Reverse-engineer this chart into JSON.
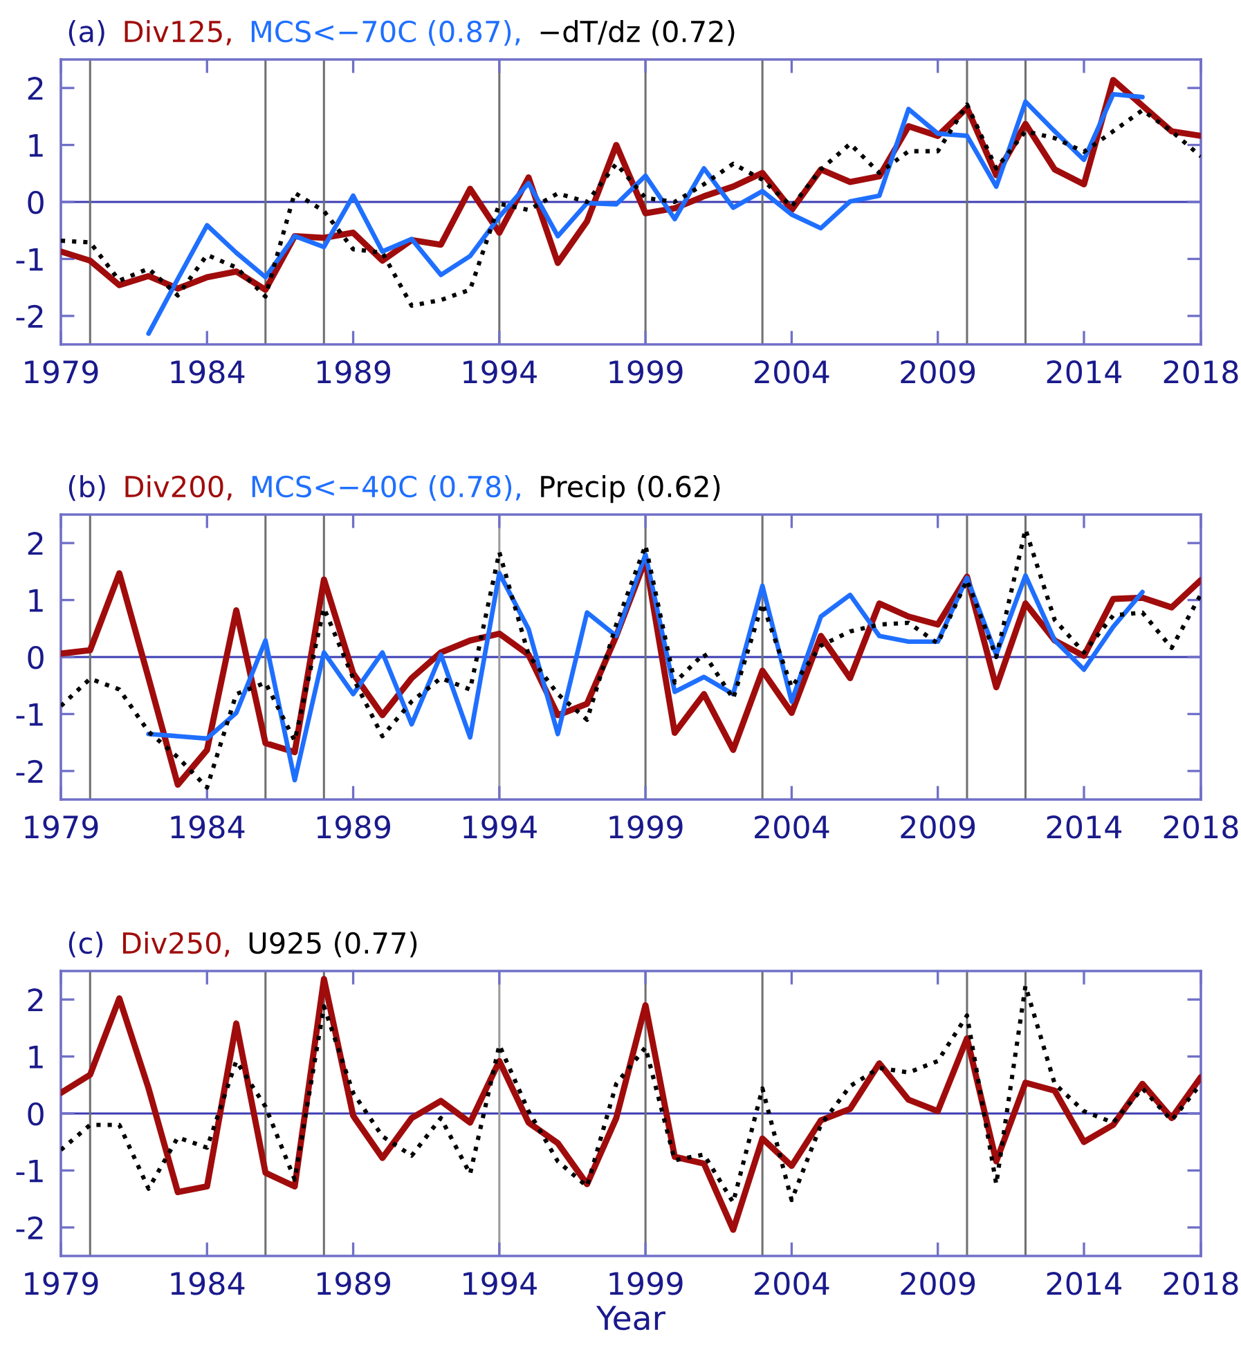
{
  "chart_data": [
    {
      "type": "line",
      "title": "(a)",
      "legend": "top left",
      "xlim": [
        1979,
        2018
      ],
      "ylim": [
        -2.5,
        2.5
      ],
      "xticks": [
        1979,
        1984,
        1989,
        1994,
        1999,
        2004,
        2009,
        2014,
        2018
      ],
      "yticks": [
        -2,
        -1,
        0,
        1,
        2
      ],
      "grid": false,
      "x": [
        1979,
        1980,
        1981,
        1982,
        1983,
        1984,
        1985,
        1986,
        1987,
        1988,
        1989,
        1990,
        1991,
        1992,
        1993,
        1994,
        1995,
        1996,
        1997,
        1998,
        1999,
        2000,
        2001,
        2002,
        2003,
        2004,
        2005,
        2006,
        2007,
        2008,
        2009,
        2010,
        2011,
        2012,
        2013,
        2014,
        2015,
        2016,
        2017,
        2018
      ],
      "ref_lines": [
        {
          "axis": "y",
          "value": 0,
          "color": "#3c3cb4"
        },
        {
          "axis": "x",
          "value": 1980,
          "color": "#707070"
        },
        {
          "axis": "x",
          "value": 1986,
          "color": "#707070"
        },
        {
          "axis": "x",
          "value": 1988,
          "color": "#707070"
        },
        {
          "axis": "x",
          "value": 1994,
          "color": "#707070"
        },
        {
          "axis": "x",
          "value": 1999,
          "color": "#707070"
        },
        {
          "axis": "x",
          "value": 2003,
          "color": "#707070"
        },
        {
          "axis": "x",
          "value": 2010,
          "color": "#707070"
        },
        {
          "axis": "x",
          "value": 2012,
          "color": "#707070"
        }
      ],
      "series": [
        {
          "name": "Div125,",
          "color": "#a00c0c",
          "line_style": "solid",
          "values": [
            -0.87,
            -1.03,
            -1.46,
            -1.3,
            -1.52,
            -1.32,
            -1.22,
            -1.54,
            -0.6,
            -0.63,
            -0.54,
            -1.03,
            -0.67,
            -0.75,
            0.23,
            -0.54,
            0.43,
            -1.07,
            -0.34,
            1.0,
            -0.2,
            -0.11,
            0.1,
            0.27,
            0.51,
            -0.14,
            0.57,
            0.35,
            0.45,
            1.33,
            1.16,
            1.65,
            0.47,
            1.37,
            0.57,
            0.31,
            2.14,
            1.69,
            1.24,
            1.16
          ]
        },
        {
          "name": "MCS<−70C (0.87),",
          "color": "#1f6fff",
          "line_style": "solid",
          "values": [
            null,
            null,
            null,
            -2.31,
            -1.35,
            -0.41,
            -0.89,
            -1.32,
            -0.6,
            -0.79,
            0.11,
            -0.87,
            -0.65,
            -1.28,
            -0.95,
            -0.26,
            0.33,
            -0.6,
            -0.02,
            -0.04,
            0.46,
            -0.3,
            0.59,
            -0.1,
            0.19,
            -0.22,
            -0.46,
            0.01,
            0.11,
            1.63,
            1.2,
            1.16,
            0.27,
            1.76,
            1.24,
            0.74,
            1.89,
            1.84,
            null,
            null
          ]
        },
        {
          "name": "−dT/dz (0.72)",
          "color": "#000000",
          "line_style": "dotted",
          "values": [
            -0.68,
            -0.71,
            -1.38,
            -1.17,
            -1.64,
            -0.93,
            -1.15,
            -1.66,
            0.16,
            -0.16,
            -0.83,
            -0.89,
            -1.82,
            -1.72,
            -1.54,
            -0.03,
            -0.14,
            0.15,
            0.0,
            0.67,
            0.07,
            0.0,
            0.31,
            0.67,
            0.39,
            -0.08,
            0.57,
            1.02,
            0.51,
            0.89,
            0.89,
            1.71,
            0.59,
            1.24,
            1.12,
            0.88,
            1.24,
            1.61,
            1.24,
            0.8
          ]
        }
      ]
    },
    {
      "type": "line",
      "title": "(b)",
      "legend": "top left",
      "xlim": [
        1979,
        2018
      ],
      "ylim": [
        -2.5,
        2.5
      ],
      "xticks": [
        1979,
        1984,
        1989,
        1994,
        1999,
        2004,
        2009,
        2014,
        2018
      ],
      "yticks": [
        -2,
        -1,
        0,
        1,
        2
      ],
      "grid": false,
      "x": [
        1979,
        1980,
        1981,
        1982,
        1983,
        1984,
        1985,
        1986,
        1987,
        1988,
        1989,
        1990,
        1991,
        1992,
        1993,
        1994,
        1995,
        1996,
        1997,
        1998,
        1999,
        2000,
        2001,
        2002,
        2003,
        2004,
        2005,
        2006,
        2007,
        2008,
        2009,
        2010,
        2011,
        2012,
        2013,
        2014,
        2015,
        2016,
        2017,
        2018
      ],
      "ref_lines": [
        {
          "axis": "y",
          "value": 0,
          "color": "#3c3cb4"
        },
        {
          "axis": "x",
          "value": 1980,
          "color": "#707070"
        },
        {
          "axis": "x",
          "value": 1986,
          "color": "#707070"
        },
        {
          "axis": "x",
          "value": 1988,
          "color": "#707070"
        },
        {
          "axis": "x",
          "value": 1994,
          "color": "#9a9a9a"
        },
        {
          "axis": "x",
          "value": 1999,
          "color": "#707070"
        },
        {
          "axis": "x",
          "value": 2003,
          "color": "#707070"
        },
        {
          "axis": "x",
          "value": 2010,
          "color": "#707070"
        },
        {
          "axis": "x",
          "value": 2012,
          "color": "#707070"
        }
      ],
      "series": [
        {
          "name": "Div200,",
          "color": "#a00c0c",
          "line_style": "solid",
          "values": [
            0.06,
            0.12,
            1.47,
            -0.37,
            -2.24,
            -1.63,
            0.82,
            -1.51,
            -1.67,
            1.36,
            -0.29,
            -1.02,
            -0.37,
            0.08,
            0.29,
            0.41,
            0.04,
            -1.02,
            -0.82,
            0.37,
            1.71,
            -1.33,
            -0.65,
            -1.63,
            -0.24,
            -0.98,
            0.37,
            -0.37,
            0.94,
            0.71,
            0.57,
            1.41,
            -0.53,
            0.94,
            0.29,
            0.02,
            1.02,
            1.04,
            0.87,
            1.35
          ]
        },
        {
          "name": "MCS<−40C (0.78),",
          "color": "#1f6fff",
          "line_style": "solid",
          "values": [
            null,
            null,
            null,
            -1.35,
            -1.39,
            -1.43,
            -0.98,
            0.29,
            -2.16,
            0.08,
            -0.65,
            0.08,
            -1.18,
            0.04,
            -1.41,
            1.47,
            0.49,
            -1.35,
            0.78,
            0.37,
            1.8,
            -0.61,
            -0.35,
            -0.65,
            1.25,
            -0.78,
            0.71,
            1.09,
            0.37,
            0.27,
            0.27,
            1.39,
            0.04,
            1.43,
            0.29,
            -0.22,
            0.53,
            1.14,
            null,
            null
          ]
        },
        {
          "name": "Precip (0.62)",
          "color": "#000000",
          "line_style": "dotted",
          "values": [
            -0.86,
            -0.38,
            -0.57,
            -1.31,
            -1.76,
            -2.29,
            -0.65,
            -0.45,
            -1.47,
            0.86,
            -0.37,
            -1.39,
            -0.78,
            -0.37,
            -0.57,
            1.84,
            0.04,
            -0.65,
            -1.1,
            0.57,
            1.96,
            -0.45,
            0.06,
            -0.73,
            0.94,
            -0.53,
            0.2,
            0.45,
            0.57,
            0.6,
            0.24,
            1.35,
            0.0,
            2.24,
            0.65,
            0.08,
            0.73,
            0.78,
            0.16,
            1.1
          ]
        }
      ]
    },
    {
      "type": "line",
      "title": "(c)",
      "legend": "top left",
      "xlabel": "Year",
      "xlim": [
        1979,
        2018
      ],
      "ylim": [
        -2.5,
        2.5
      ],
      "xticks": [
        1979,
        1984,
        1989,
        1994,
        1999,
        2004,
        2009,
        2014,
        2018
      ],
      "yticks": [
        -2,
        -1,
        0,
        1,
        2
      ],
      "grid": false,
      "x": [
        1979,
        1980,
        1981,
        1982,
        1983,
        1984,
        1985,
        1986,
        1987,
        1988,
        1989,
        1990,
        1991,
        1992,
        1993,
        1994,
        1995,
        1996,
        1997,
        1998,
        1999,
        2000,
        2001,
        2002,
        2003,
        2004,
        2005,
        2006,
        2007,
        2008,
        2009,
        2010,
        2011,
        2012,
        2013,
        2014,
        2015,
        2016,
        2017,
        2018
      ],
      "ref_lines": [
        {
          "axis": "y",
          "value": 0,
          "color": "#3c3cb4"
        },
        {
          "axis": "x",
          "value": 1980,
          "color": "#707070"
        },
        {
          "axis": "x",
          "value": 1986,
          "color": "#707070"
        },
        {
          "axis": "x",
          "value": 1988,
          "color": "#707070"
        },
        {
          "axis": "x",
          "value": 1994,
          "color": "#9a9a9a"
        },
        {
          "axis": "x",
          "value": 1999,
          "color": "#707070"
        },
        {
          "axis": "x",
          "value": 2003,
          "color": "#707070"
        },
        {
          "axis": "x",
          "value": 2010,
          "color": "#707070"
        },
        {
          "axis": "x",
          "value": 2012,
          "color": "#707070"
        }
      ],
      "series": [
        {
          "name": "Div250,",
          "color": "#a00c0c",
          "line_style": "solid",
          "values": [
            0.36,
            0.68,
            2.02,
            0.44,
            -1.38,
            -1.28,
            1.58,
            -1.04,
            -1.28,
            2.36,
            -0.04,
            -0.78,
            -0.08,
            0.22,
            -0.16,
            0.92,
            -0.16,
            -0.52,
            -1.24,
            -0.08,
            1.9,
            -0.76,
            -0.88,
            -2.04,
            -0.44,
            -0.92,
            -0.12,
            0.08,
            0.88,
            0.24,
            0.04,
            1.32,
            -0.84,
            0.54,
            0.4,
            -0.5,
            -0.2,
            0.52,
            -0.08,
            0.64
          ]
        },
        {
          "name": "U925 (0.77)",
          "color": "#000000",
          "line_style": "dotted",
          "values": [
            -0.64,
            -0.2,
            -0.2,
            -1.32,
            -0.42,
            -0.6,
            0.92,
            0.12,
            -1.16,
            1.88,
            0.36,
            -0.4,
            -0.74,
            -0.08,
            -1.06,
            1.2,
            0.04,
            -0.84,
            -1.28,
            0.52,
            1.16,
            -0.82,
            -0.72,
            -1.56,
            0.44,
            -1.52,
            -0.2,
            0.48,
            0.8,
            0.72,
            0.92,
            1.72,
            -1.24,
            2.24,
            0.52,
            0.04,
            -0.16,
            0.44,
            -0.12,
            0.52
          ]
        }
      ]
    }
  ]
}
